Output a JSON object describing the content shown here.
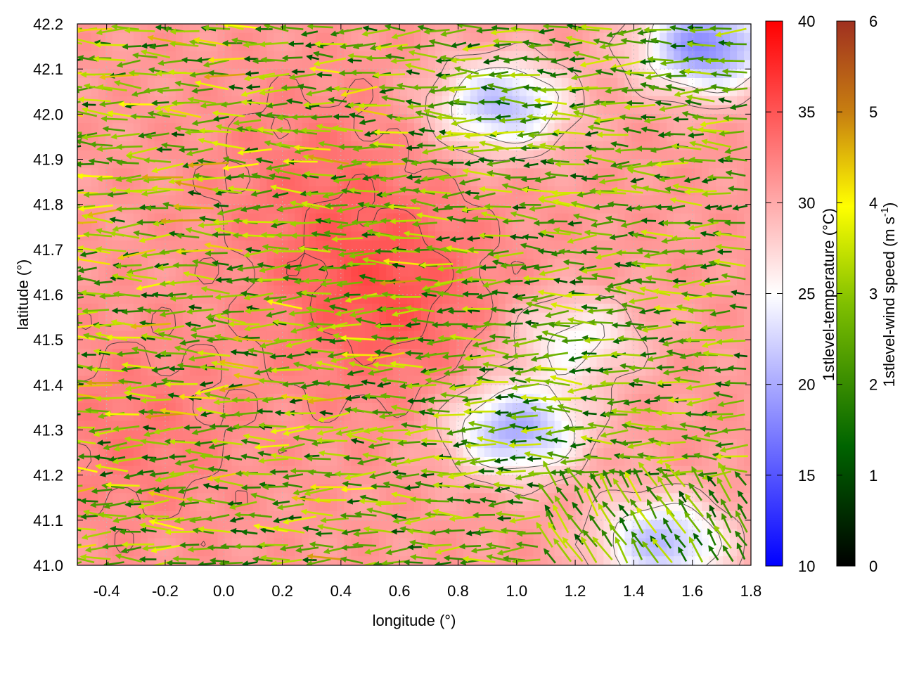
{
  "chart_data": {
    "type": "heatmap",
    "xlabel": "longitude (°)",
    "ylabel": "latitude (°)",
    "xlim": [
      -0.5,
      1.8
    ],
    "ylim": [
      41.0,
      42.2
    ],
    "xticks": [
      "-0.4",
      "-0.2",
      "0.0",
      "0.2",
      "0.4",
      "0.6",
      "0.8",
      "1.0",
      "1.2",
      "1.4",
      "1.6",
      "1.8"
    ],
    "yticks": [
      "41.0",
      "41.1",
      "41.2",
      "41.3",
      "41.4",
      "41.5",
      "41.6",
      "41.7",
      "41.8",
      "41.9",
      "42.0",
      "42.1",
      "42.2"
    ],
    "grid": true,
    "temperature_colorbar": {
      "label": "1stlevel-temperature (°C)",
      "range": [
        10,
        40
      ],
      "ticks": [
        "10",
        "15",
        "20",
        "25",
        "30",
        "35",
        "40"
      ],
      "colors": [
        "#0000ff",
        "#ffffff",
        "#ff0000"
      ],
      "mid_value": 25
    },
    "wind_colorbar": {
      "label_main": "1stlevel-wind speed (m s",
      "label_sup": "-1",
      "label_end": ")",
      "range": [
        0,
        6
      ],
      "ticks": [
        "0",
        "1",
        "2",
        "3",
        "4",
        "5",
        "6"
      ],
      "colors": [
        "#000000",
        "#006400",
        "#7fbf00",
        "#ffff00",
        "#c88010",
        "#a03020"
      ]
    },
    "temperature_field": {
      "description_units": "°C",
      "base": 31,
      "hot_spots": [
        {
          "lon": 0.55,
          "lat": 41.6,
          "temp": 35
        },
        {
          "lon": 0.3,
          "lat": 41.85,
          "temp": 33
        },
        {
          "lon": -0.3,
          "lat": 41.3,
          "temp": 33
        }
      ],
      "cool_spots": [
        {
          "lon": 1.65,
          "lat": 42.15,
          "temp": 18
        },
        {
          "lon": 0.95,
          "lat": 42.02,
          "temp": 21
        },
        {
          "lon": 1.0,
          "lat": 41.3,
          "temp": 20
        },
        {
          "lon": 1.5,
          "lat": 41.05,
          "temp": 21
        },
        {
          "lon": 1.2,
          "lat": 41.5,
          "temp": 25
        }
      ]
    },
    "wind_field": {
      "prevailing_direction": "westward",
      "mean_speed": 2.2,
      "units": "m s-1"
    }
  }
}
